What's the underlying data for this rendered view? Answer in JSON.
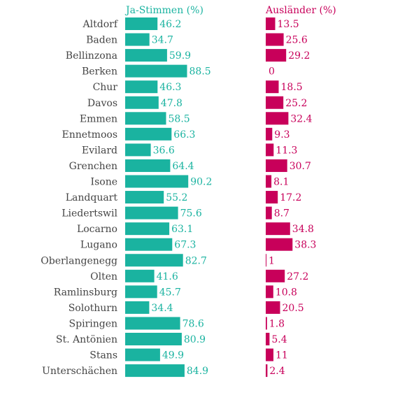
{
  "chart_data": {
    "type": "bar",
    "categories": [
      "Altdorf",
      "Baden",
      "Bellinzona",
      "Berken",
      "Chur",
      "Davos",
      "Emmen",
      "Ennetmoos",
      "Evilard",
      "Grenchen",
      "Isone",
      "Landquart",
      "Liedertswil",
      "Locarno",
      "Lugano",
      "Oberlangenegg",
      "Olten",
      "Ramlinsburg",
      "Solothurn",
      "Spiringen",
      "St. Antönien",
      "Stans",
      "Unterschächen"
    ],
    "series": [
      {
        "name": "Ja-Stimmen (%)",
        "color": "#1ab3a0",
        "values": [
          46.2,
          34.7,
          59.9,
          88.5,
          46.3,
          47.8,
          58.5,
          66.3,
          36.6,
          64.4,
          90.2,
          55.2,
          75.6,
          63.1,
          67.3,
          82.7,
          41.6,
          45.7,
          34.4,
          78.6,
          80.9,
          49.9,
          84.9
        ],
        "labels": [
          "46.2",
          "34.7",
          "59.9",
          "88.5",
          "46.3",
          "47.8",
          "58.5",
          "66.3",
          "36.6",
          "64.4",
          "90.2",
          "55.2",
          "75.6",
          "63.1",
          "67.3",
          "82.7",
          "41.6",
          "45.7",
          "34.4",
          "78.6",
          "80.9",
          "49.9",
          "84.9"
        ]
      },
      {
        "name": "Ausländer (%)",
        "color": "#c8005a",
        "values": [
          13.5,
          25.6,
          29.2,
          0,
          18.5,
          25.2,
          32.4,
          9.3,
          11.3,
          30.7,
          8.1,
          17.2,
          8.7,
          34.8,
          38.3,
          1,
          27.2,
          10.8,
          20.5,
          1.8,
          5.4,
          11,
          2.4
        ],
        "labels": [
          "13.5",
          "25.6",
          "29.2",
          "0",
          "18.5",
          "25.2",
          "32.4",
          "9.3",
          "11.3",
          "30.7",
          "8.1",
          "17.2",
          "8.7",
          "34.8",
          "38.3",
          "1",
          "27.2",
          "10.8",
          "20.5",
          "1.8",
          "5.4",
          "11",
          "2.4"
        ]
      }
    ],
    "label_color": "#444444"
  }
}
